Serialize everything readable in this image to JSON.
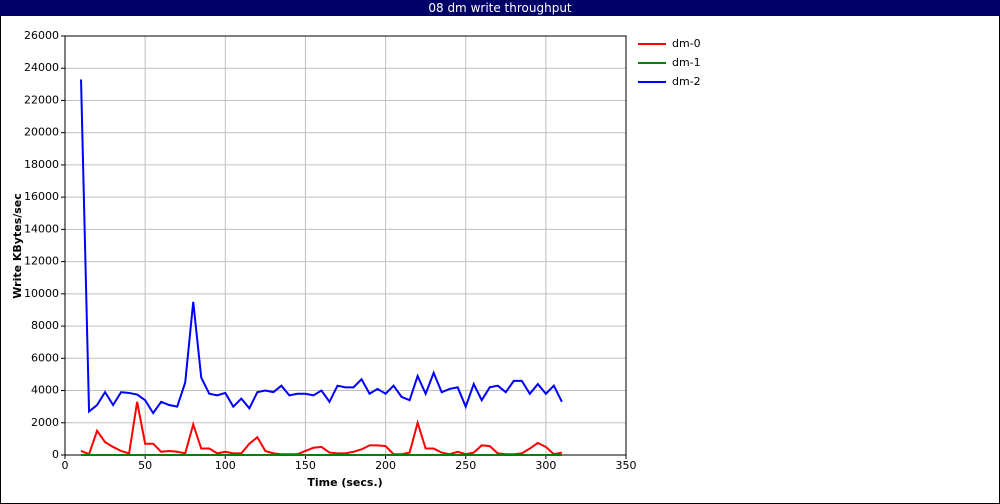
{
  "chart_data": {
    "type": "line",
    "title": "08 dm write throughput",
    "x_label": "Time (secs.)",
    "y_label": "Write KBytes/sec",
    "x": [
      10,
      15,
      20,
      25,
      30,
      35,
      40,
      45,
      50,
      55,
      60,
      65,
      70,
      75,
      80,
      85,
      90,
      95,
      100,
      105,
      110,
      115,
      120,
      125,
      130,
      135,
      140,
      145,
      150,
      155,
      160,
      165,
      170,
      175,
      180,
      185,
      190,
      195,
      200,
      205,
      210,
      215,
      220,
      225,
      230,
      235,
      240,
      245,
      250,
      255,
      260,
      265,
      270,
      275,
      280,
      285,
      290,
      295,
      300,
      305,
      310
    ],
    "series": [
      {
        "name": "dm-0",
        "color": "#ff0000",
        "values": [
          250,
          50,
          1500,
          800,
          500,
          250,
          100,
          3300,
          700,
          700,
          200,
          250,
          200,
          100,
          1900,
          400,
          400,
          100,
          200,
          100,
          100,
          700,
          1100,
          250,
          100,
          50,
          50,
          50,
          250,
          450,
          500,
          150,
          100,
          100,
          200,
          350,
          600,
          600,
          550,
          50,
          50,
          150,
          2000,
          400,
          400,
          150,
          50,
          200,
          50,
          150,
          600,
          550,
          100,
          50,
          50,
          100,
          400,
          750,
          500,
          50,
          150
        ]
      },
      {
        "name": "dm-1",
        "color": "#008000",
        "values": [
          0,
          0,
          0,
          0,
          0,
          0,
          0,
          0,
          0,
          0,
          0,
          0,
          0,
          0,
          0,
          0,
          0,
          0,
          0,
          0,
          0,
          0,
          0,
          0,
          0,
          0,
          0,
          0,
          0,
          0,
          0,
          0,
          0,
          0,
          0,
          0,
          0,
          0,
          0,
          0,
          0,
          0,
          0,
          0,
          0,
          0,
          0,
          0,
          0,
          0,
          0,
          0,
          0,
          0,
          0,
          0,
          0,
          0,
          0,
          0,
          0
        ]
      },
      {
        "name": "dm-2",
        "color": "#0000ff",
        "values": [
          23300,
          2700,
          3100,
          3900,
          3100,
          3900,
          3850,
          3750,
          3400,
          2600,
          3300,
          3100,
          3000,
          4500,
          9500,
          4800,
          3800,
          3700,
          3850,
          3000,
          3500,
          2900,
          3900,
          4000,
          3900,
          4300,
          3700,
          3800,
          3800,
          3700,
          4000,
          3300,
          4300,
          4200,
          4200,
          4700,
          3800,
          4100,
          3800,
          4300,
          3600,
          3400,
          4900,
          3800,
          5100,
          3900,
          4100,
          4200,
          3000,
          4400,
          3400,
          4200,
          4300,
          3900,
          4600,
          4600,
          3800,
          4400,
          3800,
          4300,
          3300
        ]
      }
    ],
    "xlim": [
      0,
      350
    ],
    "xticks": [
      0,
      50,
      100,
      150,
      200,
      250,
      300,
      350
    ],
    "ylim": [
      0,
      26000
    ],
    "yticks": [
      0,
      2000,
      4000,
      6000,
      8000,
      10000,
      12000,
      14000,
      16000,
      18000,
      20000,
      22000,
      24000,
      26000
    ],
    "grid": true,
    "legend": "right"
  }
}
